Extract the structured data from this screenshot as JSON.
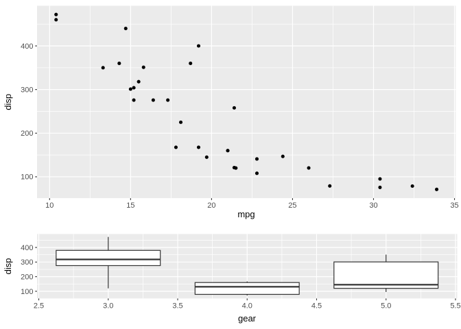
{
  "colors": {
    "background": "#FFFFFF",
    "panel_background": "#EBEBEB",
    "grid_major": "#FFFFFF",
    "grid_minor": "#FFFFFF",
    "tick_mark": "#333333",
    "tick_label": "#4D4D4D",
    "axis_title": "#000000",
    "point": "#000000",
    "box_border": "#333333",
    "box_fill": "#FFFFFF"
  },
  "chart_data": [
    {
      "type": "scatter",
      "title": "",
      "xlabel": "mpg",
      "ylabel": "disp",
      "xlim": [
        9.225,
        35.075
      ],
      "ylim": [
        51.05,
        492.05
      ],
      "grid": true,
      "legend": "none",
      "x_ticks": {
        "values": [
          10,
          15,
          20,
          25,
          30,
          35
        ],
        "labels": [
          "10",
          "15",
          "20",
          "25",
          "30",
          "35"
        ]
      },
      "y_ticks": {
        "values": [
          100,
          200,
          300,
          400
        ],
        "labels": [
          "100",
          "200",
          "300",
          "400"
        ]
      },
      "x_minor": [
        12.5,
        17.5,
        22.5,
        27.5,
        32.5
      ],
      "y_minor": [
        150,
        250,
        350,
        450
      ],
      "points": [
        [
          21.0,
          160
        ],
        [
          21.0,
          160
        ],
        [
          22.8,
          108
        ],
        [
          21.4,
          258
        ],
        [
          18.7,
          360
        ],
        [
          18.1,
          225
        ],
        [
          14.3,
          360
        ],
        [
          24.4,
          146.7
        ],
        [
          22.8,
          140.8
        ],
        [
          19.2,
          167.6
        ],
        [
          17.8,
          167.6
        ],
        [
          16.4,
          275.8
        ],
        [
          17.3,
          275.8
        ],
        [
          15.2,
          275.8
        ],
        [
          10.4,
          472
        ],
        [
          10.4,
          460
        ],
        [
          14.7,
          440
        ],
        [
          32.4,
          78.7
        ],
        [
          30.4,
          75.7
        ],
        [
          33.9,
          71.1
        ],
        [
          21.5,
          120.1
        ],
        [
          15.5,
          318
        ],
        [
          15.2,
          304
        ],
        [
          13.3,
          350
        ],
        [
          19.2,
          400
        ],
        [
          27.3,
          79
        ],
        [
          26.0,
          120.3
        ],
        [
          30.4,
          95.1
        ],
        [
          15.8,
          351
        ],
        [
          19.7,
          145
        ],
        [
          15.0,
          301
        ],
        [
          21.4,
          121
        ]
      ]
    },
    {
      "type": "boxplot",
      "title": "",
      "xlabel": "gear",
      "ylabel": "disp",
      "xlim": [
        2.4875,
        5.5125
      ],
      "ylim": [
        51.05,
        492.05
      ],
      "grid": true,
      "legend": "none",
      "x_ticks": {
        "values": [
          2.5,
          3.0,
          3.5,
          4.0,
          4.5,
          5.0,
          5.5
        ],
        "labels": [
          "2.5",
          "3.0",
          "3.5",
          "4.0",
          "4.5",
          "5.0",
          "5.5"
        ]
      },
      "y_ticks": {
        "values": [
          100,
          200,
          300,
          400
        ],
        "labels": [
          "100",
          "200",
          "300",
          "400"
        ]
      },
      "x_minor": [
        2.75,
        3.25,
        3.75,
        4.25,
        4.75,
        5.25
      ],
      "y_minor": [
        150,
        250,
        350,
        450
      ],
      "boxes": [
        {
          "x": 3,
          "width": 0.75,
          "lower_whisker": 120.1,
          "q1": 275.8,
          "median": 318,
          "q3": 380,
          "upper_whisker": 472
        },
        {
          "x": 4,
          "width": 0.75,
          "lower_whisker": 71.1,
          "q1": 78.9,
          "median": 130.9,
          "q3": 160,
          "upper_whisker": 167.6
        },
        {
          "x": 5,
          "width": 0.75,
          "lower_whisker": 95.1,
          "q1": 120.3,
          "median": 145,
          "q3": 301,
          "upper_whisker": 351
        }
      ]
    }
  ]
}
